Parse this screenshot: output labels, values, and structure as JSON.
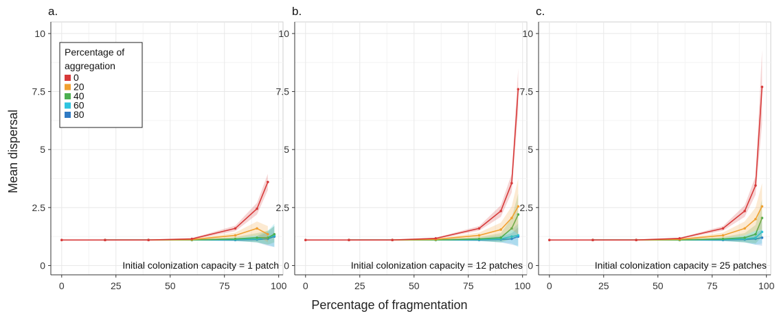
{
  "chart_data": {
    "type": "line",
    "xlabel": "Percentage of fragmentation",
    "ylabel": "Mean dispersal",
    "xlim": [
      -5,
      102
    ],
    "ylim": [
      -0.4,
      10.5
    ],
    "x_ticks": [
      0,
      25,
      50,
      75,
      100
    ],
    "y_ticks": [
      0,
      2.5,
      5,
      7.5,
      10
    ],
    "x_tick_labels": [
      "0",
      "25",
      "50",
      "75",
      "100"
    ],
    "y_tick_labels": [
      "0",
      "2.5",
      "5",
      "7.5",
      "10"
    ],
    "grid": true,
    "legend": {
      "title": "Percentage of aggregation",
      "placement": "top-left",
      "entries": [
        "0",
        "20",
        "40",
        "60",
        "80"
      ],
      "colors": [
        "#d73a3a",
        "#f0a030",
        "#4caf50",
        "#2ec4e0",
        "#2f7bc4"
      ]
    },
    "panels": [
      {
        "letter": "a.",
        "annotation": "Initial colonization capacity = 1 patch",
        "series": [
          {
            "name": "0",
            "x": [
              0,
              20,
              40,
              60,
              80,
              90,
              95
            ],
            "y": [
              1.1,
              1.1,
              1.1,
              1.15,
              1.6,
              2.45,
              3.6
            ],
            "band": [
              0,
              0,
              0,
              0.03,
              0.12,
              0.25,
              0.35
            ]
          },
          {
            "name": "20",
            "x": [
              20,
              40,
              60,
              80,
              90,
              95
            ],
            "y": [
              1.1,
              1.1,
              1.12,
              1.3,
              1.6,
              1.35
            ],
            "band": [
              0,
              0,
              0.03,
              0.12,
              0.3,
              0.35
            ]
          },
          {
            "name": "40",
            "x": [
              20,
              40,
              60,
              80,
              90,
              95,
              98
            ],
            "y": [
              1.1,
              1.1,
              1.1,
              1.15,
              1.2,
              1.2,
              1.35
            ],
            "band": [
              0,
              0,
              0.02,
              0.08,
              0.2,
              0.3,
              0.35
            ]
          },
          {
            "name": "60",
            "x": [
              20,
              40,
              60,
              80,
              90,
              95,
              98
            ],
            "y": [
              1.1,
              1.1,
              1.1,
              1.12,
              1.15,
              1.2,
              1.3
            ],
            "band": [
              0,
              0,
              0.02,
              0.06,
              0.15,
              0.3,
              0.5
            ]
          },
          {
            "name": "80",
            "x": [
              20,
              40,
              60,
              80,
              90,
              95,
              98
            ],
            "y": [
              1.1,
              1.1,
              1.1,
              1.1,
              1.12,
              1.15,
              1.25
            ],
            "band": [
              0,
              0,
              0.02,
              0.05,
              0.12,
              0.3,
              0.45
            ]
          }
        ]
      },
      {
        "letter": "b.",
        "annotation": "Initial colonization capacity = 12 patches",
        "series": [
          {
            "name": "0",
            "x": [
              0,
              20,
              40,
              60,
              80,
              90,
              95,
              98
            ],
            "y": [
              1.1,
              1.1,
              1.1,
              1.17,
              1.6,
              2.35,
              3.55,
              7.6
            ],
            "band": [
              0,
              0,
              0,
              0.03,
              0.1,
              0.25,
              0.4,
              0.9
            ]
          },
          {
            "name": "20",
            "x": [
              20,
              40,
              60,
              80,
              90,
              95,
              98
            ],
            "y": [
              1.1,
              1.1,
              1.13,
              1.3,
              1.55,
              2.05,
              2.55
            ],
            "band": [
              0,
              0,
              0.03,
              0.12,
              0.3,
              0.5,
              1.2
            ]
          },
          {
            "name": "40",
            "x": [
              20,
              40,
              60,
              80,
              90,
              95,
              98
            ],
            "y": [
              1.1,
              1.1,
              1.1,
              1.15,
              1.2,
              1.6,
              2.2
            ],
            "band": [
              0,
              0,
              0.02,
              0.08,
              0.2,
              0.45,
              0.9
            ]
          },
          {
            "name": "60",
            "x": [
              20,
              40,
              60,
              80,
              90,
              95,
              98
            ],
            "y": [
              1.1,
              1.1,
              1.1,
              1.12,
              1.15,
              1.25,
              1.3
            ],
            "band": [
              0,
              0,
              0.02,
              0.06,
              0.15,
              0.3,
              0.5
            ]
          },
          {
            "name": "80",
            "x": [
              20,
              40,
              60,
              80,
              90,
              95,
              98
            ],
            "y": [
              1.1,
              1.1,
              1.1,
              1.1,
              1.12,
              1.15,
              1.25
            ],
            "band": [
              0,
              0,
              0.02,
              0.05,
              0.12,
              0.25,
              0.4
            ]
          }
        ]
      },
      {
        "letter": "c.",
        "annotation": "Initial colonization capacity = 25 patches",
        "series": [
          {
            "name": "0",
            "x": [
              0,
              20,
              40,
              60,
              80,
              90,
              95,
              98
            ],
            "y": [
              1.1,
              1.1,
              1.1,
              1.17,
              1.6,
              2.35,
              3.45,
              7.7
            ],
            "band": [
              0,
              0,
              0,
              0.03,
              0.1,
              0.25,
              0.4,
              1.6
            ]
          },
          {
            "name": "20",
            "x": [
              20,
              40,
              60,
              80,
              90,
              95,
              98
            ],
            "y": [
              1.1,
              1.1,
              1.13,
              1.3,
              1.6,
              2.0,
              2.55
            ],
            "band": [
              0,
              0,
              0.03,
              0.12,
              0.3,
              0.5,
              1.0
            ]
          },
          {
            "name": "40",
            "x": [
              20,
              40,
              60,
              80,
              90,
              95,
              98
            ],
            "y": [
              1.1,
              1.1,
              1.1,
              1.15,
              1.2,
              1.35,
              2.05
            ],
            "band": [
              0,
              0,
              0.02,
              0.08,
              0.2,
              0.4,
              0.8
            ]
          },
          {
            "name": "60",
            "x": [
              20,
              40,
              60,
              80,
              90,
              95,
              98
            ],
            "y": [
              1.1,
              1.1,
              1.1,
              1.12,
              1.15,
              1.2,
              1.45
            ],
            "band": [
              0,
              0,
              0.02,
              0.06,
              0.15,
              0.3,
              0.5
            ]
          },
          {
            "name": "80",
            "x": [
              20,
              40,
              60,
              80,
              90,
              95,
              98
            ],
            "y": [
              1.1,
              1.1,
              1.1,
              1.1,
              1.12,
              1.15,
              1.2
            ],
            "band": [
              0,
              0,
              0.02,
              0.05,
              0.12,
              0.25,
              0.35
            ]
          }
        ]
      }
    ]
  }
}
